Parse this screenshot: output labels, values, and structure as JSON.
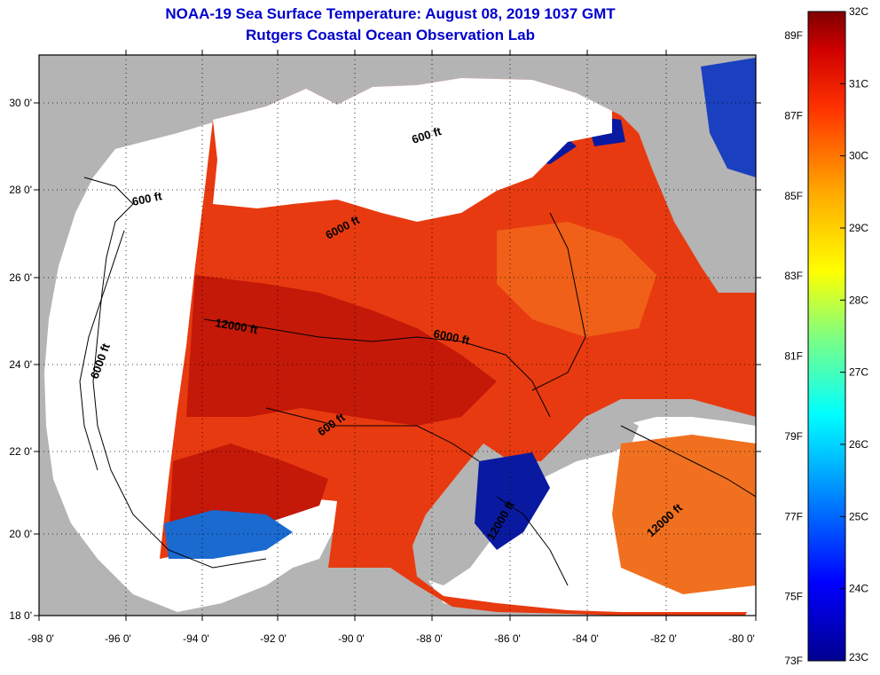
{
  "title": {
    "line1": "NOAA-19 Sea Surface Temperature:  August 08, 2019 1037 GMT",
    "line2": "Rutgers Coastal Ocean Observation Lab"
  },
  "latitude_labels": [
    "30 0'",
    "28 0'",
    "26 0'",
    "24 0'",
    "22 0'",
    "20 0'",
    "18 0'"
  ],
  "longitude_labels": [
    "-98 0'",
    "-96 0'",
    "-94 0'",
    "-92 0'",
    "-90 0'",
    "-88 0'",
    "-86 0'",
    "-84 0'",
    "-82 0'",
    "-80 0'"
  ],
  "contour_labels": [
    "600 ft",
    "600 ft",
    "6000 ft",
    "12000 ft",
    "6000 ft",
    "6000 ft",
    "600 ft",
    "12000 ft",
    "12000 ft"
  ],
  "colorbar": {
    "fahrenheit_labels": [
      "89F",
      "87F",
      "85F",
      "83F",
      "81F",
      "79F",
      "77F",
      "75F",
      "73F"
    ],
    "celsius_labels": [
      "32C",
      "31C",
      "30C",
      "29C",
      "28C",
      "27C",
      "26C",
      "25C",
      "24C",
      "23C"
    ],
    "min_c": 23,
    "max_c": 32
  },
  "colors": {
    "title": "#0000cc",
    "land": "#b4b4b4",
    "no_data": "#ffffff",
    "frame": "#000000"
  }
}
